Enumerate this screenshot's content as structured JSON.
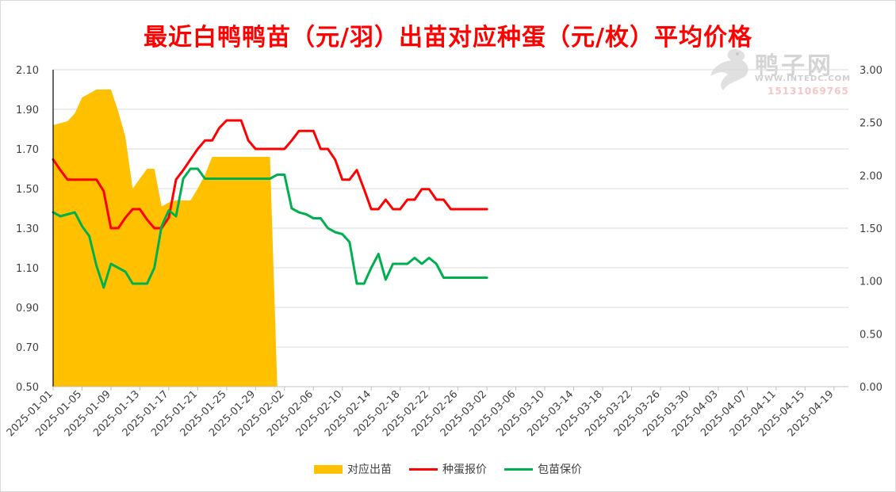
{
  "title": "最近白鸭鸭苗（元/羽）出苗对应种蛋（元/枚）平均价格",
  "watermark": {
    "brand": "鸭子网",
    "url": "WWW.INTEDC.COM",
    "phone": "15131069765"
  },
  "colors": {
    "area": "#ffc000",
    "egg": "#ff0000",
    "chick": "#00b050",
    "grid": "#d9d9d9"
  },
  "chart_data": {
    "type": "line",
    "title": "最近白鸭鸭苗（元/羽）出苗对应种蛋（元/枚）平均价格",
    "x_start": "2025-01-01",
    "x_end": "2025-04-21",
    "x_tick_labels": [
      "2025-01-01",
      "2025-01-05",
      "2025-01-09",
      "2025-01-13",
      "2025-01-17",
      "2025-01-21",
      "2025-01-25",
      "2025-01-29",
      "2025-02-02",
      "2025-02-06",
      "2025-02-10",
      "2025-02-14",
      "2025-02-18",
      "2025-02-22",
      "2025-02-26",
      "2025-03-02",
      "2025-03-06",
      "2025-03-10",
      "2025-03-14",
      "2025-03-18",
      "2025-03-22",
      "2025-03-26",
      "2025-03-30",
      "2025-04-03",
      "2025-04-07",
      "2025-04-11",
      "2025-04-15",
      "2025-04-19"
    ],
    "y_left": {
      "min": 0.5,
      "max": 2.1,
      "ticks": [
        "0.50",
        "0.70",
        "0.90",
        "1.10",
        "1.30",
        "1.50",
        "1.70",
        "1.90",
        "2.10"
      ]
    },
    "y_right": {
      "min": 0,
      "max": 3,
      "ticks": [
        "0.00",
        "0.50",
        "1.00",
        "1.50",
        "2.00",
        "2.50",
        "3.00"
      ]
    },
    "legend_position": "bottom",
    "series": [
      {
        "name": "对应出苗",
        "type": "area",
        "axis": "left",
        "points": [
          [
            "2025-01-01",
            1.82
          ],
          [
            "2025-01-02",
            1.83
          ],
          [
            "2025-01-03",
            1.84
          ],
          [
            "2025-01-04",
            1.88
          ],
          [
            "2025-01-05",
            1.96
          ],
          [
            "2025-01-06",
            1.98
          ],
          [
            "2025-01-07",
            2.0
          ],
          [
            "2025-01-08",
            2.0
          ],
          [
            "2025-01-09",
            2.0
          ],
          [
            "2025-01-10",
            1.89
          ],
          [
            "2025-01-11",
            1.76
          ],
          [
            "2025-01-12",
            1.5
          ],
          [
            "2025-01-13",
            1.55
          ],
          [
            "2025-01-14",
            1.6
          ],
          [
            "2025-01-15",
            1.6
          ],
          [
            "2025-01-16",
            1.41
          ],
          [
            "2025-01-17",
            1.43
          ],
          [
            "2025-01-18",
            1.44
          ],
          [
            "2025-01-19",
            1.44
          ],
          [
            "2025-01-20",
            1.44
          ],
          [
            "2025-01-21",
            1.5
          ],
          [
            "2025-01-22",
            1.57
          ],
          [
            "2025-01-23",
            1.66
          ],
          [
            "2025-01-24",
            1.66
          ],
          [
            "2025-01-25",
            1.66
          ],
          [
            "2025-01-26",
            1.66
          ],
          [
            "2025-01-27",
            1.66
          ],
          [
            "2025-01-28",
            1.66
          ],
          [
            "2025-01-29",
            1.66
          ],
          [
            "2025-01-30",
            1.66
          ],
          [
            "2025-01-31",
            1.66
          ],
          [
            "2025-02-01",
            0.5
          ]
        ]
      },
      {
        "name": "种蛋报价",
        "type": "line",
        "axis": "right",
        "points": [
          [
            "2025-01-01",
            2.15
          ],
          [
            "2025-01-02",
            2.05
          ],
          [
            "2025-01-03",
            1.96
          ],
          [
            "2025-01-04",
            1.96
          ],
          [
            "2025-01-05",
            1.96
          ],
          [
            "2025-01-06",
            1.96
          ],
          [
            "2025-01-07",
            1.96
          ],
          [
            "2025-01-08",
            1.85
          ],
          [
            "2025-01-09",
            1.5
          ],
          [
            "2025-01-10",
            1.5
          ],
          [
            "2025-01-11",
            1.6
          ],
          [
            "2025-01-12",
            1.68
          ],
          [
            "2025-01-13",
            1.68
          ],
          [
            "2025-01-14",
            1.58
          ],
          [
            "2025-01-15",
            1.5
          ],
          [
            "2025-01-16",
            1.5
          ],
          [
            "2025-01-17",
            1.6
          ],
          [
            "2025-01-18",
            1.96
          ],
          [
            "2025-01-19",
            2.05
          ],
          [
            "2025-01-20",
            2.15
          ],
          [
            "2025-01-21",
            2.25
          ],
          [
            "2025-01-22",
            2.33
          ],
          [
            "2025-01-23",
            2.33
          ],
          [
            "2025-01-24",
            2.45
          ],
          [
            "2025-01-25",
            2.52
          ],
          [
            "2025-01-26",
            2.52
          ],
          [
            "2025-01-27",
            2.52
          ],
          [
            "2025-01-28",
            2.33
          ],
          [
            "2025-01-29",
            2.25
          ],
          [
            "2025-01-30",
            2.25
          ],
          [
            "2025-01-31",
            2.25
          ],
          [
            "2025-02-01",
            2.25
          ],
          [
            "2025-02-02",
            2.25
          ],
          [
            "2025-02-03",
            2.33
          ],
          [
            "2025-02-04",
            2.42
          ],
          [
            "2025-02-05",
            2.42
          ],
          [
            "2025-02-06",
            2.42
          ],
          [
            "2025-02-07",
            2.25
          ],
          [
            "2025-02-08",
            2.25
          ],
          [
            "2025-02-09",
            2.15
          ],
          [
            "2025-02-10",
            1.96
          ],
          [
            "2025-02-11",
            1.96
          ],
          [
            "2025-02-12",
            2.05
          ],
          [
            "2025-02-13",
            1.87
          ],
          [
            "2025-02-14",
            1.68
          ],
          [
            "2025-02-15",
            1.68
          ],
          [
            "2025-02-16",
            1.77
          ],
          [
            "2025-02-17",
            1.68
          ],
          [
            "2025-02-18",
            1.68
          ],
          [
            "2025-02-19",
            1.77
          ],
          [
            "2025-02-20",
            1.77
          ],
          [
            "2025-02-21",
            1.87
          ],
          [
            "2025-02-22",
            1.87
          ],
          [
            "2025-02-23",
            1.77
          ],
          [
            "2025-02-24",
            1.77
          ],
          [
            "2025-02-25",
            1.68
          ],
          [
            "2025-02-26",
            1.68
          ],
          [
            "2025-02-27",
            1.68
          ],
          [
            "2025-02-28",
            1.68
          ],
          [
            "2025-03-01",
            1.68
          ],
          [
            "2025-03-02",
            1.68
          ]
        ]
      },
      {
        "name": "包苗保价",
        "type": "line",
        "axis": "left",
        "points": [
          [
            "2025-01-01",
            1.38
          ],
          [
            "2025-01-02",
            1.36
          ],
          [
            "2025-01-03",
            1.37
          ],
          [
            "2025-01-04",
            1.38
          ],
          [
            "2025-01-05",
            1.31
          ],
          [
            "2025-01-06",
            1.26
          ],
          [
            "2025-01-07",
            1.11
          ],
          [
            "2025-01-08",
            1.0
          ],
          [
            "2025-01-09",
            1.12
          ],
          [
            "2025-01-10",
            1.1
          ],
          [
            "2025-01-11",
            1.08
          ],
          [
            "2025-01-12",
            1.02
          ],
          [
            "2025-01-13",
            1.02
          ],
          [
            "2025-01-14",
            1.02
          ],
          [
            "2025-01-15",
            1.1
          ],
          [
            "2025-01-16",
            1.31
          ],
          [
            "2025-01-17",
            1.39
          ],
          [
            "2025-01-18",
            1.36
          ],
          [
            "2025-01-19",
            1.55
          ],
          [
            "2025-01-20",
            1.6
          ],
          [
            "2025-01-21",
            1.6
          ],
          [
            "2025-01-22",
            1.55
          ],
          [
            "2025-01-23",
            1.55
          ],
          [
            "2025-01-24",
            1.55
          ],
          [
            "2025-01-25",
            1.55
          ],
          [
            "2025-01-26",
            1.55
          ],
          [
            "2025-01-27",
            1.55
          ],
          [
            "2025-01-28",
            1.55
          ],
          [
            "2025-01-29",
            1.55
          ],
          [
            "2025-01-30",
            1.55
          ],
          [
            "2025-01-31",
            1.55
          ],
          [
            "2025-02-01",
            1.57
          ],
          [
            "2025-02-02",
            1.57
          ],
          [
            "2025-02-03",
            1.4
          ],
          [
            "2025-02-04",
            1.38
          ],
          [
            "2025-02-05",
            1.37
          ],
          [
            "2025-02-06",
            1.35
          ],
          [
            "2025-02-07",
            1.35
          ],
          [
            "2025-02-08",
            1.3
          ],
          [
            "2025-02-09",
            1.28
          ],
          [
            "2025-02-10",
            1.27
          ],
          [
            "2025-02-11",
            1.23
          ],
          [
            "2025-02-12",
            1.02
          ],
          [
            "2025-02-13",
            1.02
          ],
          [
            "2025-02-14",
            1.1
          ],
          [
            "2025-02-15",
            1.17
          ],
          [
            "2025-02-16",
            1.04
          ],
          [
            "2025-02-17",
            1.12
          ],
          [
            "2025-02-18",
            1.12
          ],
          [
            "2025-02-19",
            1.12
          ],
          [
            "2025-02-20",
            1.15
          ],
          [
            "2025-02-21",
            1.12
          ],
          [
            "2025-02-22",
            1.15
          ],
          [
            "2025-02-23",
            1.12
          ],
          [
            "2025-02-24",
            1.05
          ],
          [
            "2025-02-25",
            1.05
          ],
          [
            "2025-02-26",
            1.05
          ],
          [
            "2025-02-27",
            1.05
          ],
          [
            "2025-02-28",
            1.05
          ],
          [
            "2025-03-01",
            1.05
          ],
          [
            "2025-03-02",
            1.05
          ]
        ]
      }
    ]
  }
}
